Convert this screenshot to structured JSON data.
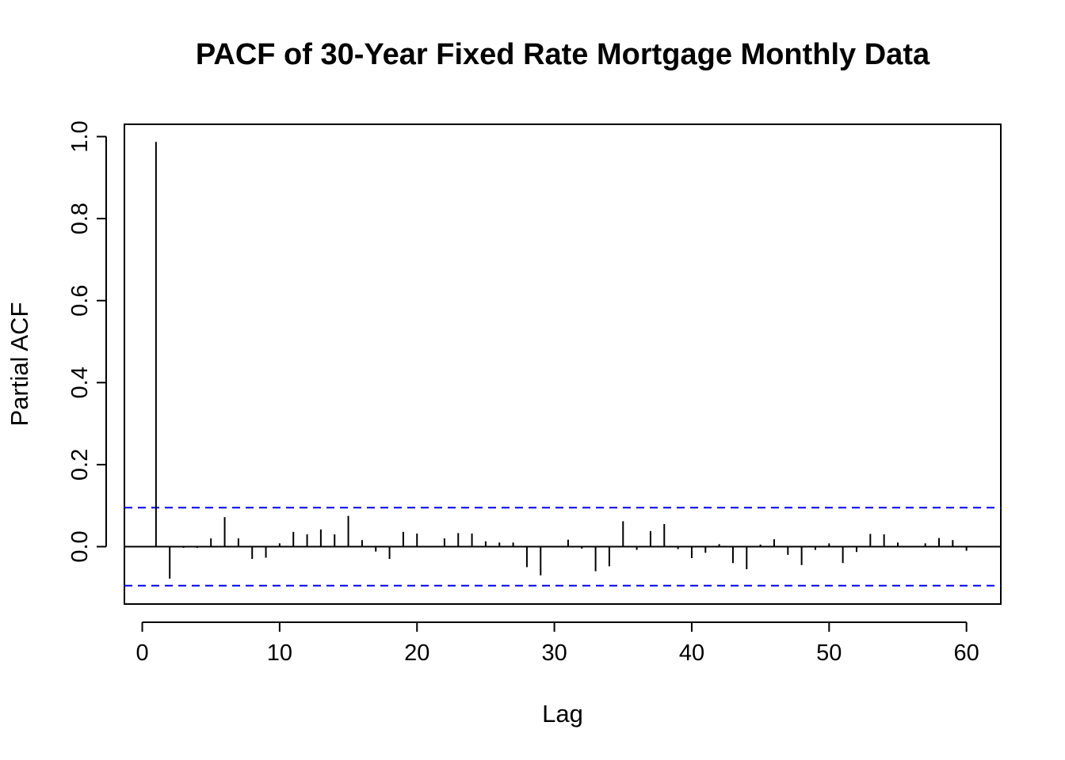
{
  "chart_data": {
    "type": "bar",
    "title": "PACF of 30-Year Fixed Rate Mortgage Monthly Data",
    "xlabel": "Lag",
    "ylabel": "Partial ACF",
    "xlim": [
      -1.3,
      62.5
    ],
    "ylim": [
      -0.14,
      1.03
    ],
    "x_ticks": [
      0,
      10,
      20,
      30,
      40,
      50,
      60
    ],
    "x_tick_labels": [
      "0",
      "10",
      "20",
      "30",
      "40",
      "50",
      "60"
    ],
    "y_ticks": [
      0.0,
      0.2,
      0.4,
      0.6,
      0.8,
      1.0
    ],
    "y_tick_labels": [
      "0.0",
      "0.2",
      "0.4",
      "0.6",
      "0.8",
      "1.0"
    ],
    "confidence_bound": 0.095,
    "confidence_color": "#0000ee",
    "series": [
      {
        "lags": [
          1,
          2,
          3,
          4,
          5,
          6,
          7,
          8,
          9,
          10,
          11,
          12,
          13,
          14,
          15,
          16,
          17,
          18,
          19,
          20,
          21,
          22,
          23,
          24,
          25,
          26,
          27,
          28,
          29,
          30,
          31,
          32,
          33,
          34,
          35,
          36,
          37,
          38,
          39,
          40,
          41,
          42,
          43,
          44,
          45,
          46,
          47,
          48,
          49,
          50,
          51,
          52,
          53,
          54,
          55,
          56,
          57,
          58,
          59,
          60
        ],
        "values": [
          0.987,
          -0.078,
          -0.003,
          -0.003,
          0.02,
          0.072,
          0.02,
          -0.03,
          -0.027,
          0.008,
          0.036,
          0.03,
          0.042,
          0.03,
          0.075,
          0.016,
          -0.012,
          -0.03,
          0.036,
          0.032,
          -0.002,
          0.02,
          0.033,
          0.032,
          0.013,
          0.01,
          0.01,
          -0.05,
          -0.07,
          -0.002,
          0.017,
          -0.005,
          -0.06,
          -0.048,
          0.062,
          -0.008,
          0.038,
          0.055,
          -0.006,
          -0.028,
          -0.015,
          0.006,
          -0.04,
          -0.055,
          0.005,
          0.018,
          -0.02,
          -0.045,
          -0.008,
          0.008,
          -0.04,
          -0.013,
          0.031,
          0.03,
          0.01,
          -0.002,
          0.008,
          0.021,
          0.016,
          -0.01
        ]
      }
    ]
  }
}
